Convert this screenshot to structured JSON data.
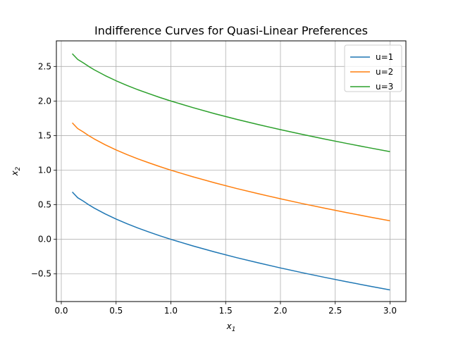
{
  "chart_data": {
    "type": "line",
    "title": "Indifference Curves for Quasi-Linear Preferences",
    "xlabel": "x",
    "xlabel_sub": "1",
    "ylabel": "x",
    "ylabel_sub": "2",
    "xlim": [
      -0.045,
      3.145
    ],
    "ylim": [
      -0.9,
      2.87
    ],
    "xticks": [
      0.0,
      0.5,
      1.0,
      1.5,
      2.0,
      2.5,
      3.0
    ],
    "xtick_labels": [
      "0.0",
      "0.5",
      "1.0",
      "1.5",
      "2.0",
      "2.5",
      "3.0"
    ],
    "yticks": [
      -0.5,
      0.0,
      0.5,
      1.0,
      1.5,
      2.0,
      2.5
    ],
    "ytick_labels": [
      "−0.5",
      "0.0",
      "0.5",
      "1.0",
      "1.5",
      "2.0",
      "2.5"
    ],
    "grid": true,
    "legend_position": "top-right",
    "x": [
      0.1,
      0.15,
      0.2,
      0.25,
      0.3,
      0.4,
      0.5,
      0.6,
      0.7,
      0.8,
      0.9,
      1.0,
      1.2,
      1.4,
      1.6,
      1.8,
      2.0,
      2.2,
      2.4,
      2.6,
      2.8,
      3.0
    ],
    "series": [
      {
        "name": "u=1",
        "color": "#1f77b4",
        "values": [
          0.684,
          0.601,
          0.553,
          0.5,
          0.452,
          0.368,
          0.293,
          0.225,
          0.163,
          0.106,
          0.051,
          0.0,
          -0.095,
          -0.183,
          -0.265,
          -0.341,
          -0.414,
          -0.483,
          -0.549,
          -0.612,
          -0.673,
          -0.732
        ]
      },
      {
        "name": "u=2",
        "color": "#ff7f0e",
        "values": [
          1.684,
          1.601,
          1.553,
          1.5,
          1.452,
          1.368,
          1.293,
          1.225,
          1.163,
          1.106,
          1.051,
          1.0,
          0.905,
          0.817,
          0.735,
          0.659,
          0.586,
          0.517,
          0.451,
          0.388,
          0.327,
          0.268
        ]
      },
      {
        "name": "u=3",
        "color": "#2ca02c",
        "values": [
          2.684,
          2.601,
          2.553,
          2.5,
          2.452,
          2.368,
          2.293,
          2.225,
          2.163,
          2.106,
          2.051,
          2.0,
          1.905,
          1.817,
          1.735,
          1.659,
          1.586,
          1.517,
          1.451,
          1.388,
          1.327,
          1.268
        ]
      }
    ]
  }
}
